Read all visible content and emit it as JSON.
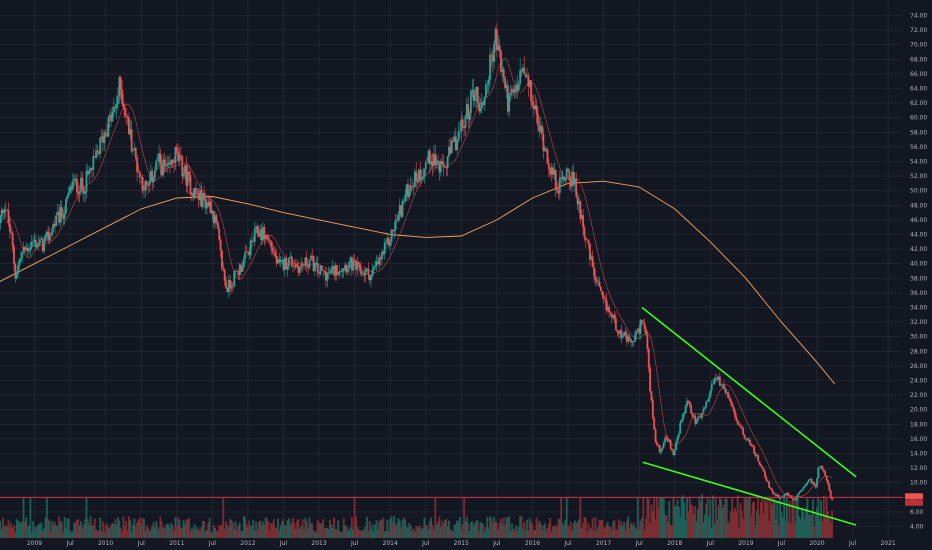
{
  "chart_data": {
    "type": "candlestick",
    "title": "",
    "xlabel": "",
    "ylabel": "",
    "ylim": [
      4,
      74
    ],
    "y_ticks": [
      "74.00",
      "72.00",
      "70.00",
      "68.00",
      "66.00",
      "64.00",
      "62.00",
      "60.00",
      "58.00",
      "56.00",
      "54.00",
      "52.00",
      "50.00",
      "48.00",
      "46.00",
      "44.00",
      "42.00",
      "40.00",
      "38.00",
      "36.00",
      "34.00",
      "32.00",
      "30.00",
      "28.00",
      "26.00",
      "24.00",
      "22.00",
      "20.00",
      "18.00",
      "16.00",
      "14.00",
      "12.00",
      "10.00",
      "8.00",
      "6.00",
      "4.00"
    ],
    "x_ticks": [
      {
        "label": "2009",
        "t": 2009.0
      },
      {
        "label": "Jul",
        "t": 2009.5
      },
      {
        "label": "2010",
        "t": 2010.0
      },
      {
        "label": "Jul",
        "t": 2010.5
      },
      {
        "label": "2011",
        "t": 2011.0
      },
      {
        "label": "Jul",
        "t": 2011.5
      },
      {
        "label": "2012",
        "t": 2012.0
      },
      {
        "label": "Jul",
        "t": 2012.5
      },
      {
        "label": "2013",
        "t": 2013.0
      },
      {
        "label": "Jul",
        "t": 2013.5
      },
      {
        "label": "2014",
        "t": 2014.0
      },
      {
        "label": "Jul",
        "t": 2014.5
      },
      {
        "label": "2015",
        "t": 2015.0
      },
      {
        "label": "Jul",
        "t": 2015.5
      },
      {
        "label": "2016",
        "t": 2016.0
      },
      {
        "label": "Jul",
        "t": 2016.5
      },
      {
        "label": "2017",
        "t": 2017.0
      },
      {
        "label": "Jul",
        "t": 2017.5
      },
      {
        "label": "2018",
        "t": 2018.0
      },
      {
        "label": "Jul",
        "t": 2018.5
      },
      {
        "label": "2019",
        "t": 2019.0
      },
      {
        "label": "Jul",
        "t": 2019.5
      },
      {
        "label": "2020",
        "t": 2020.0
      },
      {
        "label": "Jul",
        "t": 2020.5
      },
      {
        "label": "2021",
        "t": 2021.0
      }
    ],
    "price_points": [
      {
        "t": 2008.5,
        "v": 44.5
      },
      {
        "t": 2008.6,
        "v": 48.5
      },
      {
        "t": 2008.7,
        "v": 43.0
      },
      {
        "t": 2008.75,
        "v": 38.5
      },
      {
        "t": 2008.85,
        "v": 41.5
      },
      {
        "t": 2009.0,
        "v": 43.0
      },
      {
        "t": 2009.15,
        "v": 42.5
      },
      {
        "t": 2009.3,
        "v": 45.5
      },
      {
        "t": 2009.45,
        "v": 47.5
      },
      {
        "t": 2009.55,
        "v": 51.0
      },
      {
        "t": 2009.7,
        "v": 50.5
      },
      {
        "t": 2009.85,
        "v": 53.5
      },
      {
        "t": 2010.0,
        "v": 58.0
      },
      {
        "t": 2010.15,
        "v": 61.0
      },
      {
        "t": 2010.22,
        "v": 64.5
      },
      {
        "t": 2010.3,
        "v": 60.5
      },
      {
        "t": 2010.4,
        "v": 56.0
      },
      {
        "t": 2010.5,
        "v": 52.0
      },
      {
        "t": 2010.6,
        "v": 50.0
      },
      {
        "t": 2010.75,
        "v": 54.0
      },
      {
        "t": 2010.9,
        "v": 52.5
      },
      {
        "t": 2011.0,
        "v": 55.0
      },
      {
        "t": 2011.15,
        "v": 52.0
      },
      {
        "t": 2011.25,
        "v": 50.0
      },
      {
        "t": 2011.35,
        "v": 49.0
      },
      {
        "t": 2011.5,
        "v": 48.0
      },
      {
        "t": 2011.58,
        "v": 45.0
      },
      {
        "t": 2011.65,
        "v": 40.0
      },
      {
        "t": 2011.72,
        "v": 36.5
      },
      {
        "t": 2011.85,
        "v": 38.5
      },
      {
        "t": 2012.0,
        "v": 41.0
      },
      {
        "t": 2012.15,
        "v": 44.5
      },
      {
        "t": 2012.25,
        "v": 44.0
      },
      {
        "t": 2012.35,
        "v": 42.5
      },
      {
        "t": 2012.45,
        "v": 39.5
      },
      {
        "t": 2012.6,
        "v": 40.5
      },
      {
        "t": 2012.75,
        "v": 39.5
      },
      {
        "t": 2012.9,
        "v": 40.5
      },
      {
        "t": 2013.0,
        "v": 39.0
      },
      {
        "t": 2013.15,
        "v": 38.5
      },
      {
        "t": 2013.3,
        "v": 39.5
      },
      {
        "t": 2013.45,
        "v": 40.0
      },
      {
        "t": 2013.6,
        "v": 39.0
      },
      {
        "t": 2013.75,
        "v": 38.5
      },
      {
        "t": 2013.85,
        "v": 40.0
      },
      {
        "t": 2014.0,
        "v": 43.0
      },
      {
        "t": 2014.15,
        "v": 47.0
      },
      {
        "t": 2014.3,
        "v": 51.0
      },
      {
        "t": 2014.45,
        "v": 52.5
      },
      {
        "t": 2014.6,
        "v": 55.0
      },
      {
        "t": 2014.75,
        "v": 52.5
      },
      {
        "t": 2014.9,
        "v": 56.0
      },
      {
        "t": 2015.05,
        "v": 59.0
      },
      {
        "t": 2015.2,
        "v": 64.0
      },
      {
        "t": 2015.3,
        "v": 61.0
      },
      {
        "t": 2015.4,
        "v": 66.0
      },
      {
        "t": 2015.5,
        "v": 71.0
      },
      {
        "t": 2015.58,
        "v": 67.0
      },
      {
        "t": 2015.68,
        "v": 62.0
      },
      {
        "t": 2015.78,
        "v": 63.5
      },
      {
        "t": 2015.88,
        "v": 66.5
      },
      {
        "t": 2016.0,
        "v": 63.0
      },
      {
        "t": 2016.1,
        "v": 59.0
      },
      {
        "t": 2016.2,
        "v": 56.0
      },
      {
        "t": 2016.3,
        "v": 52.0
      },
      {
        "t": 2016.4,
        "v": 50.5
      },
      {
        "t": 2016.5,
        "v": 53.0
      },
      {
        "t": 2016.6,
        "v": 51.0
      },
      {
        "t": 2016.7,
        "v": 47.0
      },
      {
        "t": 2016.8,
        "v": 42.0
      },
      {
        "t": 2016.9,
        "v": 38.0
      },
      {
        "t": 2017.0,
        "v": 35.0
      },
      {
        "t": 2017.1,
        "v": 33.5
      },
      {
        "t": 2017.2,
        "v": 31.5
      },
      {
        "t": 2017.3,
        "v": 30.0
      },
      {
        "t": 2017.4,
        "v": 29.0
      },
      {
        "t": 2017.5,
        "v": 30.5
      },
      {
        "t": 2017.56,
        "v": 32.5
      },
      {
        "t": 2017.62,
        "v": 30.0
      },
      {
        "t": 2017.68,
        "v": 22.0
      },
      {
        "t": 2017.74,
        "v": 16.0
      },
      {
        "t": 2017.82,
        "v": 14.0
      },
      {
        "t": 2017.9,
        "v": 16.5
      },
      {
        "t": 2018.0,
        "v": 14.0
      },
      {
        "t": 2018.1,
        "v": 18.0
      },
      {
        "t": 2018.2,
        "v": 21.0
      },
      {
        "t": 2018.3,
        "v": 18.5
      },
      {
        "t": 2018.4,
        "v": 19.0
      },
      {
        "t": 2018.5,
        "v": 22.0
      },
      {
        "t": 2018.6,
        "v": 24.5
      },
      {
        "t": 2018.7,
        "v": 23.0
      },
      {
        "t": 2018.8,
        "v": 21.0
      },
      {
        "t": 2018.9,
        "v": 18.5
      },
      {
        "t": 2019.0,
        "v": 16.5
      },
      {
        "t": 2019.1,
        "v": 15.0
      },
      {
        "t": 2019.2,
        "v": 13.0
      },
      {
        "t": 2019.3,
        "v": 10.5
      },
      {
        "t": 2019.4,
        "v": 8.5
      },
      {
        "t": 2019.5,
        "v": 8.0
      },
      {
        "t": 2019.6,
        "v": 8.5
      },
      {
        "t": 2019.7,
        "v": 7.5
      },
      {
        "t": 2019.8,
        "v": 9.0
      },
      {
        "t": 2019.9,
        "v": 10.5
      },
      {
        "t": 2020.0,
        "v": 9.5
      },
      {
        "t": 2020.05,
        "v": 12.5
      },
      {
        "t": 2020.12,
        "v": 11.5
      },
      {
        "t": 2020.18,
        "v": 9.5
      },
      {
        "t": 2020.22,
        "v": 7.5
      }
    ],
    "moving_average_200": [
      {
        "t": 2008.5,
        "v": 37.5
      },
      {
        "t": 2009.0,
        "v": 40.0
      },
      {
        "t": 2009.5,
        "v": 42.5
      },
      {
        "t": 2010.0,
        "v": 45.0
      },
      {
        "t": 2010.5,
        "v": 47.5
      },
      {
        "t": 2011.0,
        "v": 49.0
      },
      {
        "t": 2011.5,
        "v": 49.2
      },
      {
        "t": 2012.0,
        "v": 48.2
      },
      {
        "t": 2012.5,
        "v": 47.0
      },
      {
        "t": 2013.0,
        "v": 46.0
      },
      {
        "t": 2013.5,
        "v": 45.0
      },
      {
        "t": 2014.0,
        "v": 44.0
      },
      {
        "t": 2014.5,
        "v": 43.6
      },
      {
        "t": 2015.0,
        "v": 43.8
      },
      {
        "t": 2015.5,
        "v": 46.0
      },
      {
        "t": 2016.0,
        "v": 49.0
      },
      {
        "t": 2016.5,
        "v": 51.0
      },
      {
        "t": 2017.0,
        "v": 51.3
      },
      {
        "t": 2017.5,
        "v": 50.5
      },
      {
        "t": 2018.0,
        "v": 47.5
      },
      {
        "t": 2018.5,
        "v": 43.0
      },
      {
        "t": 2019.0,
        "v": 38.0
      },
      {
        "t": 2019.5,
        "v": 32.0
      },
      {
        "t": 2020.0,
        "v": 26.5
      },
      {
        "t": 2020.25,
        "v": 23.5
      }
    ],
    "trend_lines": [
      {
        "from": {
          "t": 2017.54,
          "v": 34.0
        },
        "to": {
          "t": 2020.55,
          "v": 10.8
        }
      },
      {
        "from": {
          "t": 2017.55,
          "v": 12.8
        },
        "to": {
          "t": 2020.55,
          "v": 4.2
        }
      }
    ],
    "horizontal_line": {
      "v": 8.0,
      "color": "#f23645"
    },
    "price_badges": [
      "",
      ""
    ],
    "colors": {
      "background": "#131722",
      "grid": "#2a2e39",
      "up": "#26a69a",
      "down": "#ef5350",
      "ma": "#f7a35c",
      "trend": "#39ff1a",
      "volume_up": "#1f5f58",
      "volume_down": "#7a2e33",
      "axis_text": "#b2b5be"
    },
    "grid": true
  }
}
